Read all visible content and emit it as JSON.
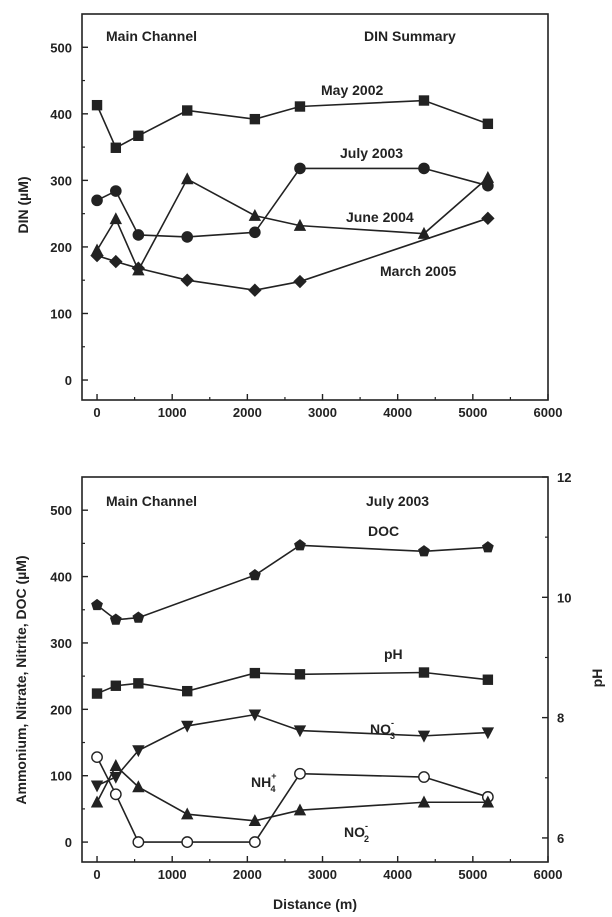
{
  "chart_data": [
    {
      "type": "line",
      "annotations": [
        "Main Channel",
        "DIN Summary"
      ],
      "xlabel": "",
      "ylabel": "DIN (µM)",
      "xlim": [
        -200,
        6000
      ],
      "ylim": [
        -30,
        550
      ],
      "x_ticks": [
        0,
        1000,
        2000,
        3000,
        4000,
        5000,
        6000
      ],
      "y_ticks": [
        0,
        100,
        200,
        300,
        400,
        500
      ],
      "grid": false,
      "legend": "inline labels",
      "series": [
        {
          "name": "May 2002",
          "marker": "square",
          "x": [
            0,
            250,
            550,
            1200,
            2100,
            2700,
            4350,
            5200
          ],
          "y": [
            413,
            349,
            367,
            405,
            392,
            411,
            420,
            385
          ]
        },
        {
          "name": "July 2003",
          "marker": "circle",
          "x": [
            0,
            250,
            550,
            1200,
            2100,
            2700,
            4350,
            5200
          ],
          "y": [
            270,
            284,
            218,
            215,
            222,
            318,
            318,
            292
          ]
        },
        {
          "name": "June 2004",
          "marker": "triangle",
          "x": [
            0,
            250,
            550,
            1200,
            2100,
            2700,
            4350,
            5200
          ],
          "y": [
            195,
            242,
            165,
            302,
            247,
            232,
            220,
            304
          ]
        },
        {
          "name": "March 2005",
          "marker": "diamond",
          "x": [
            0,
            250,
            550,
            1200,
            2100,
            2700,
            5200
          ],
          "y": [
            187,
            178,
            168,
            150,
            135,
            148,
            243
          ]
        }
      ]
    },
    {
      "type": "line",
      "annotations": [
        "Main Channel",
        "July 2003"
      ],
      "xlabel": "Distance (m)",
      "ylabel": "Ammonium, Nitrate, Nitrite, DOC (µM)",
      "y2label": "pH",
      "xlim": [
        -200,
        6000
      ],
      "ylim": [
        -30,
        550
      ],
      "y2lim": [
        5.6,
        12
      ],
      "x_ticks": [
        0,
        1000,
        2000,
        3000,
        4000,
        5000,
        6000
      ],
      "y_ticks": [
        0,
        100,
        200,
        300,
        400,
        500
      ],
      "y2_ticks": [
        6,
        8,
        10,
        12
      ],
      "grid": false,
      "legend": "inline labels",
      "series": [
        {
          "name": "DOC",
          "marker": "pentagon",
          "axis": "left",
          "x": [
            0,
            250,
            550,
            2100,
            2700,
            4350,
            5200
          ],
          "y": [
            357,
            335,
            338,
            402,
            447,
            438,
            444
          ]
        },
        {
          "name": "pH",
          "marker": "square",
          "axis": "right",
          "x": [
            0,
            250,
            550,
            1200,
            2100,
            2700,
            4350,
            5200
          ],
          "y": [
            8.4,
            8.53,
            8.57,
            8.44,
            8.74,
            8.72,
            8.75,
            8.63
          ]
        },
        {
          "name": "NO3-",
          "marker": "triangle-down",
          "axis": "left",
          "x": [
            0,
            250,
            550,
            1200,
            2100,
            2700,
            4350,
            5200
          ],
          "y": [
            85,
            98,
            138,
            175,
            192,
            168,
            160,
            165
          ]
        },
        {
          "name": "NH4+",
          "marker": "open-circle",
          "axis": "left",
          "x": [
            0,
            250,
            550,
            1200,
            2100,
            2700,
            4350,
            5200
          ],
          "y": [
            128,
            72,
            0,
            0,
            0,
            103,
            98,
            68
          ]
        },
        {
          "name": "NO2-",
          "marker": "triangle",
          "axis": "left",
          "x": [
            0,
            250,
            550,
            1200,
            2100,
            2700,
            4350,
            5200
          ],
          "y": [
            60,
            115,
            83,
            42,
            32,
            48,
            60,
            60
          ]
        }
      ]
    }
  ],
  "labels": {
    "top_main_channel": "Main Channel",
    "top_summary": "DIN Summary",
    "top_ylabel": "DIN (µM)",
    "bottom_main_channel": "Main Channel",
    "bottom_date": "July 2003",
    "bottom_ylabel": "Ammonium, Nitrate, Nitrite, DOC (µM)",
    "bottom_y2label": "pH",
    "bottom_xlabel": "Distance (m)",
    "series_may2002": "May 2002",
    "series_july2003": "July 2003",
    "series_june2004": "June 2004",
    "series_march2005": "March 2005",
    "series_doc": "DOC",
    "series_ph": "pH",
    "no3_base": "NO",
    "no3_sub": "3",
    "no3_sup": "-",
    "nh4_base": "NH",
    "nh4_sub": "4",
    "nh4_sup": "+",
    "no2_base": "NO",
    "no2_sub": "2",
    "no2_sup": "-"
  },
  "colors": {
    "ink": "#222222",
    "background": "#ffffff"
  }
}
